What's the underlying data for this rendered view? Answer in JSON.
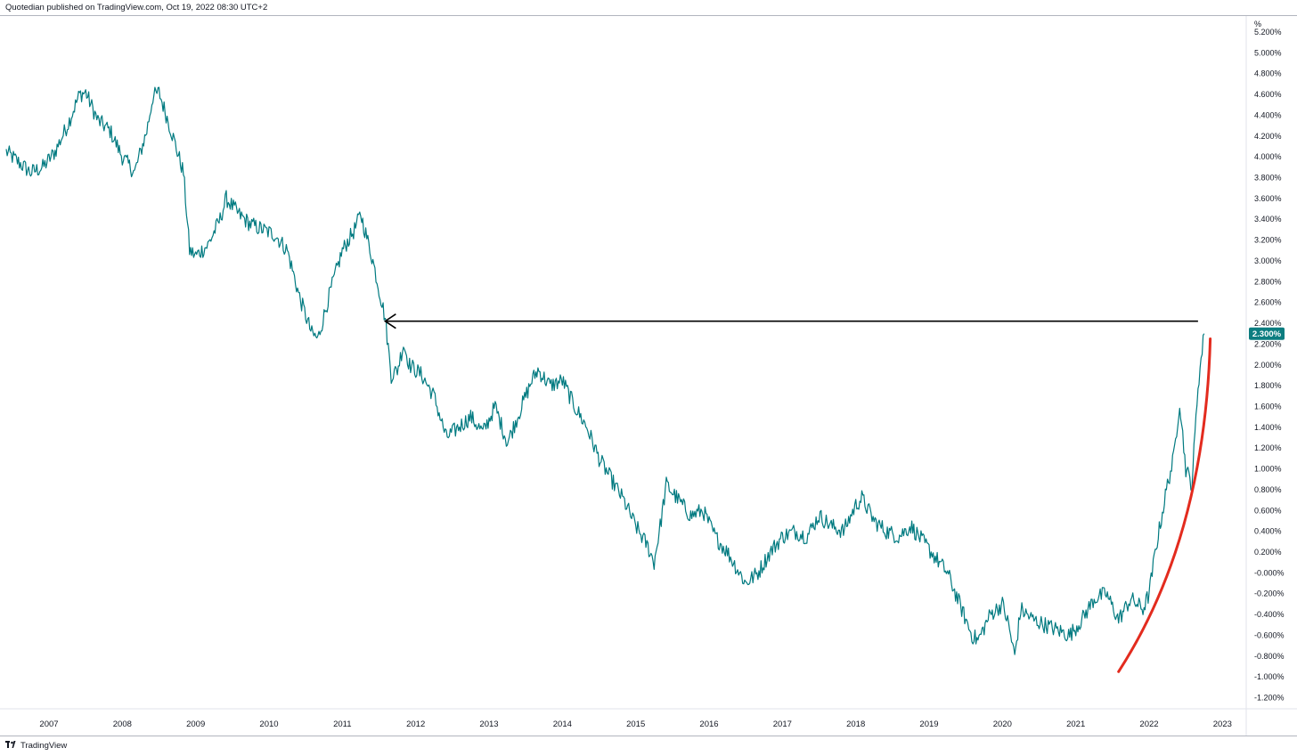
{
  "header": {
    "publisher_text": "Quotedian published on TradingView.com, Oct 19, 2022 08:30 UTC+2"
  },
  "footer": {
    "brand_text": "TradingView"
  },
  "colors": {
    "series": "#007a80",
    "annotation_arrow": "#000000",
    "annotation_curve": "#e32b1e",
    "last_price_bg": "#0c7d80"
  },
  "chart_data": {
    "type": "line",
    "title": "",
    "xlabel": "",
    "ylabel": "%",
    "ylim": [
      -1.3,
      5.3
    ],
    "y_ticks": [
      "5.200%",
      "5.000%",
      "4.800%",
      "4.600%",
      "4.400%",
      "4.200%",
      "4.000%",
      "3.800%",
      "3.600%",
      "3.400%",
      "3.200%",
      "3.000%",
      "2.800%",
      "2.600%",
      "2.400%",
      "2.200%",
      "2.000%",
      "1.800%",
      "1.600%",
      "1.400%",
      "1.200%",
      "1.000%",
      "0.800%",
      "0.600%",
      "0.400%",
      "0.200%",
      "-0.000%",
      "-0.200%",
      "-0.400%",
      "-0.600%",
      "-0.800%",
      "-1.000%",
      "-1.200%"
    ],
    "x_ticks": [
      "2007",
      "2008",
      "2009",
      "2010",
      "2011",
      "2012",
      "2013",
      "2014",
      "2015",
      "2016",
      "2017",
      "2018",
      "2019",
      "2020",
      "2021",
      "2022",
      "2023"
    ],
    "last_value_label": "2.300%",
    "grid": false,
    "series": [
      {
        "points": [
          [
            "2006-06",
            4.05
          ],
          [
            "2006-08",
            3.95
          ],
          [
            "2006-10",
            3.85
          ],
          [
            "2006-12",
            3.9
          ],
          [
            "2007-02",
            4.05
          ],
          [
            "2007-04",
            4.3
          ],
          [
            "2007-06",
            4.6
          ],
          [
            "2007-07",
            4.62
          ],
          [
            "2007-09",
            4.35
          ],
          [
            "2007-11",
            4.25
          ],
          [
            "2008-01",
            4.0
          ],
          [
            "2008-03",
            3.85
          ],
          [
            "2008-05",
            4.25
          ],
          [
            "2008-06",
            4.58
          ],
          [
            "2008-07",
            4.62
          ],
          [
            "2008-09",
            4.25
          ],
          [
            "2008-11",
            3.85
          ],
          [
            "2008-12",
            3.1
          ],
          [
            "2009-01",
            3.05
          ],
          [
            "2009-03",
            3.15
          ],
          [
            "2009-05",
            3.4
          ],
          [
            "2009-06",
            3.6
          ],
          [
            "2009-08",
            3.45
          ],
          [
            "2009-10",
            3.35
          ],
          [
            "2009-12",
            3.3
          ],
          [
            "2010-02",
            3.25
          ],
          [
            "2010-04",
            3.1
          ],
          [
            "2010-06",
            2.65
          ],
          [
            "2010-08",
            2.3
          ],
          [
            "2010-09",
            2.25
          ],
          [
            "2010-11",
            2.7
          ],
          [
            "2011-01",
            3.1
          ],
          [
            "2011-03",
            3.3
          ],
          [
            "2011-04",
            3.45
          ],
          [
            "2011-06",
            3.0
          ],
          [
            "2011-08",
            2.45
          ],
          [
            "2011-09",
            1.9
          ],
          [
            "2011-10",
            1.95
          ],
          [
            "2011-11",
            2.2
          ],
          [
            "2011-12",
            2.0
          ],
          [
            "2012-02",
            1.9
          ],
          [
            "2012-04",
            1.7
          ],
          [
            "2012-06",
            1.3
          ],
          [
            "2012-08",
            1.4
          ],
          [
            "2012-10",
            1.5
          ],
          [
            "2012-12",
            1.35
          ],
          [
            "2013-02",
            1.6
          ],
          [
            "2013-04",
            1.25
          ],
          [
            "2013-06",
            1.55
          ],
          [
            "2013-08",
            1.85
          ],
          [
            "2013-09",
            1.95
          ],
          [
            "2013-11",
            1.8
          ],
          [
            "2014-01",
            1.85
          ],
          [
            "2014-03",
            1.6
          ],
          [
            "2014-05",
            1.4
          ],
          [
            "2014-07",
            1.1
          ],
          [
            "2014-09",
            0.9
          ],
          [
            "2014-11",
            0.7
          ],
          [
            "2015-01",
            0.45
          ],
          [
            "2015-03",
            0.25
          ],
          [
            "2015-04",
            0.1
          ],
          [
            "2015-05",
            0.45
          ],
          [
            "2015-06",
            0.85
          ],
          [
            "2015-08",
            0.7
          ],
          [
            "2015-10",
            0.55
          ],
          [
            "2015-12",
            0.6
          ],
          [
            "2016-02",
            0.35
          ],
          [
            "2016-04",
            0.2
          ],
          [
            "2016-06",
            0.0
          ],
          [
            "2016-07",
            -0.1
          ],
          [
            "2016-09",
            0.0
          ],
          [
            "2016-11",
            0.2
          ],
          [
            "2017-01",
            0.35
          ],
          [
            "2017-03",
            0.4
          ],
          [
            "2017-05",
            0.35
          ],
          [
            "2017-07",
            0.55
          ],
          [
            "2017-09",
            0.45
          ],
          [
            "2017-11",
            0.4
          ],
          [
            "2018-01",
            0.65
          ],
          [
            "2018-02",
            0.72
          ],
          [
            "2018-04",
            0.5
          ],
          [
            "2018-06",
            0.4
          ],
          [
            "2018-08",
            0.35
          ],
          [
            "2018-10",
            0.45
          ],
          [
            "2018-12",
            0.3
          ],
          [
            "2019-02",
            0.15
          ],
          [
            "2019-04",
            0.0
          ],
          [
            "2019-06",
            -0.3
          ],
          [
            "2019-08",
            -0.6
          ],
          [
            "2019-09",
            -0.65
          ],
          [
            "2019-11",
            -0.4
          ],
          [
            "2020-01",
            -0.3
          ],
          [
            "2020-02",
            -0.5
          ],
          [
            "2020-03",
            -0.8
          ],
          [
            "2020-04",
            -0.35
          ],
          [
            "2020-06",
            -0.45
          ],
          [
            "2020-08",
            -0.5
          ],
          [
            "2020-10",
            -0.55
          ],
          [
            "2020-12",
            -0.6
          ],
          [
            "2021-02",
            -0.45
          ],
          [
            "2021-04",
            -0.25
          ],
          [
            "2021-06",
            -0.2
          ],
          [
            "2021-08",
            -0.45
          ],
          [
            "2021-10",
            -0.25
          ],
          [
            "2021-12",
            -0.35
          ],
          [
            "2022-01",
            -0.2
          ],
          [
            "2022-02",
            0.2
          ],
          [
            "2022-04",
            0.85
          ],
          [
            "2022-05",
            1.1
          ],
          [
            "2022-06",
            1.65
          ],
          [
            "2022-07",
            1.0
          ],
          [
            "2022-08",
            0.85
          ],
          [
            "2022-09",
            1.8
          ],
          [
            "2022-10",
            2.3
          ]
        ]
      }
    ],
    "annotations": {
      "arrow_level": 2.42,
      "arrow_from": "2022-09",
      "arrow_to": "2011-08"
    }
  }
}
